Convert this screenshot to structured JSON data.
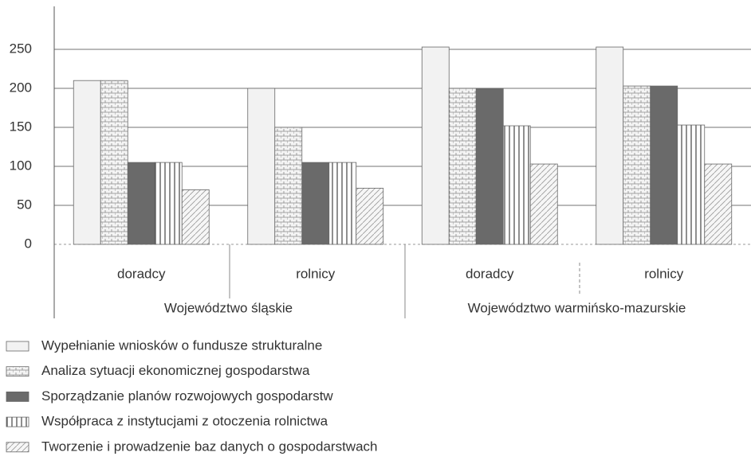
{
  "chart_data": {
    "type": "bar",
    "groups": [
      {
        "name": "Województwo śląskie",
        "categories": [
          "doradcy",
          "rolnicy"
        ]
      },
      {
        "name": "Województwo warmińsko-mazurskie",
        "categories": [
          "doradcy",
          "rolnicy"
        ]
      }
    ],
    "series": [
      {
        "name": "Wypełnianie wniosków o fundusze strukturalne",
        "color": "#f2f2f2",
        "pattern": "solid",
        "values": [
          210,
          200,
          253,
          253
        ]
      },
      {
        "name": "Analiza sytuacji ekonomicznej gospodarstwa",
        "color": "#e6e6e6",
        "pattern": "grid",
        "values": [
          210,
          150,
          200,
          203
        ]
      },
      {
        "name": "Sporządzanie planów rozwojowych gospodarstw",
        "color": "#6a6a6a",
        "pattern": "solid",
        "values": [
          105,
          105,
          200,
          203
        ]
      },
      {
        "name": "Współpraca z instytucjami z otoczenia rolnictwa",
        "color": "#ffffff",
        "pattern": "vertical",
        "values": [
          105,
          105,
          152,
          153
        ]
      },
      {
        "name": "Tworzenie i prowadzenie baz danych o gospodarstwach",
        "color": "#f4f4f4",
        "pattern": "diagonal",
        "values": [
          70,
          72,
          103,
          103
        ]
      }
    ],
    "ylim": [
      0,
      300
    ],
    "yticks": [
      0,
      50,
      100,
      150,
      200,
      250
    ],
    "grid": true
  }
}
